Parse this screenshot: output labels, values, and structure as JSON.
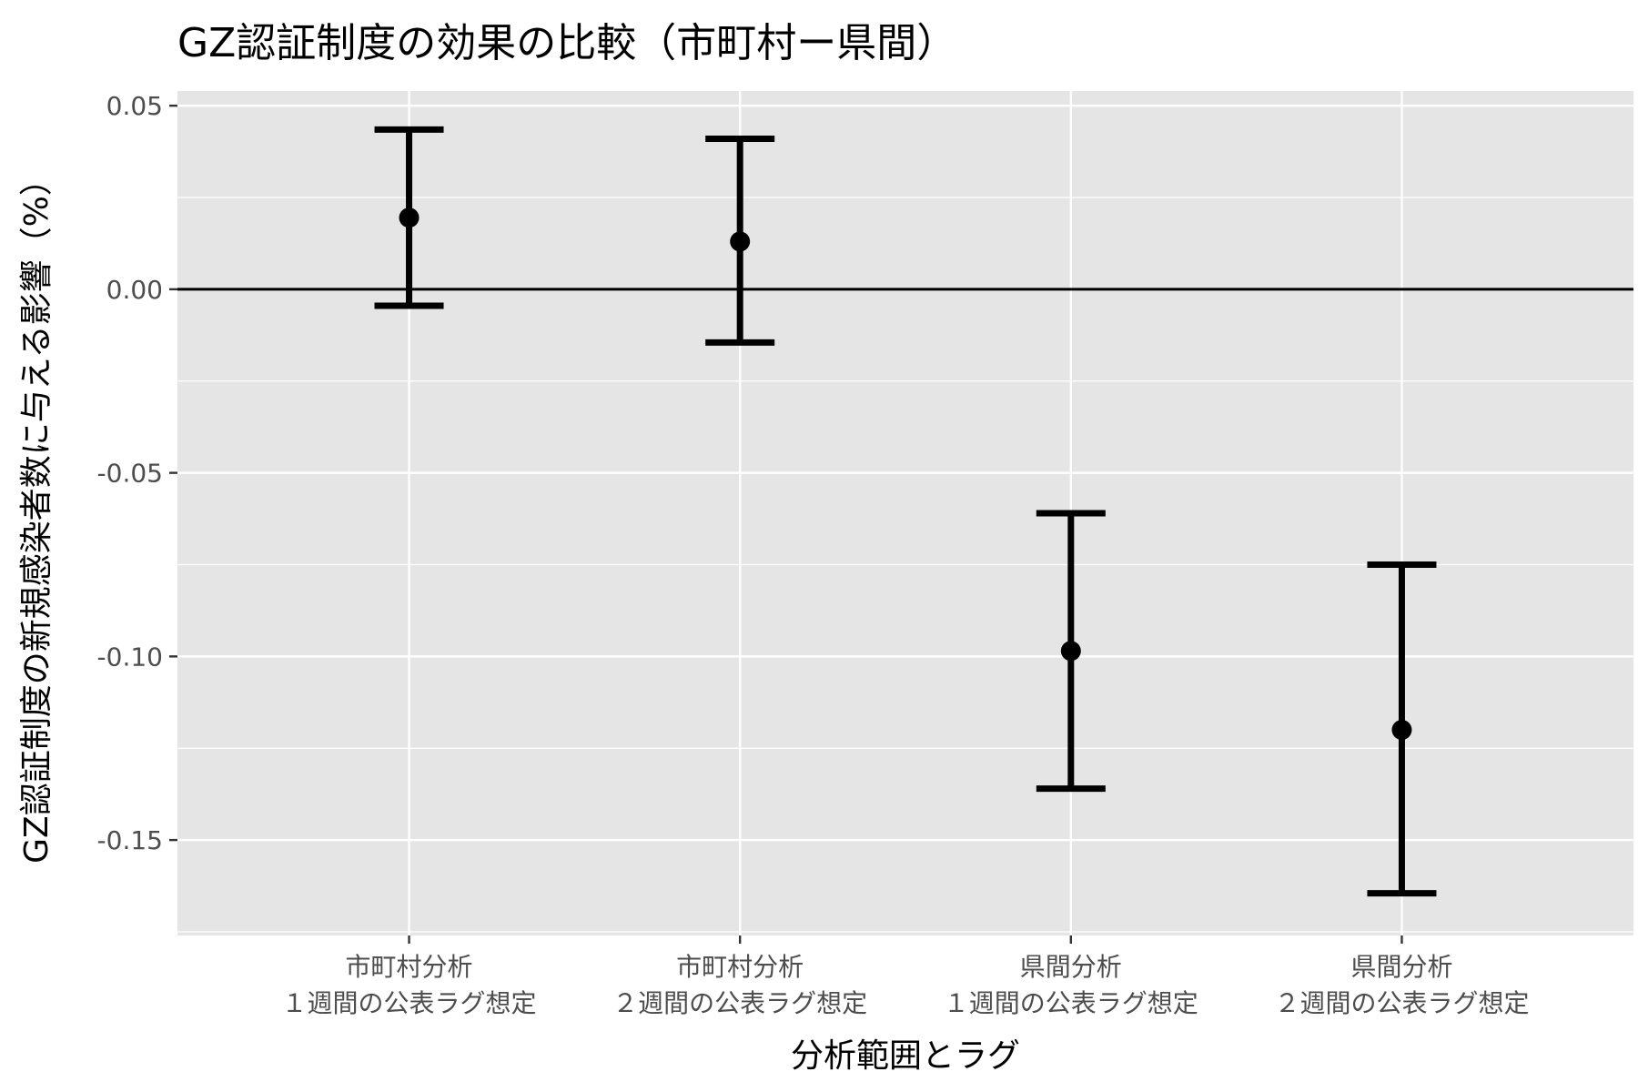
{
  "chart_data": {
    "type": "errorbar",
    "title": "GZ認証制度の効果の比較（市町村ー県間）",
    "xlabel": "分析範囲とラグ",
    "ylabel": "GZ認証制度の新規感染者数に与える影響（%）",
    "ylim": [
      -0.176,
      0.054
    ],
    "y_ticks": [
      0.05,
      0.0,
      -0.05,
      -0.1,
      -0.15
    ],
    "y_tick_labels": [
      "0.05",
      "0.00",
      "-0.05",
      "-0.10",
      "-0.15"
    ],
    "reference_line": 0.0,
    "grid": true,
    "categories": [
      {
        "line1": "市町村分析",
        "line2": "１週間の公表ラグ想定"
      },
      {
        "line1": "市町村分析",
        "line2": "２週間の公表ラグ想定"
      },
      {
        "line1": "県間分析",
        "line2": "１週間の公表ラグ想定"
      },
      {
        "line1": "県間分析",
        "line2": "２週間の公表ラグ想定"
      }
    ],
    "points": [
      {
        "estimate": 0.0195,
        "lower": -0.0045,
        "upper": 0.0435
      },
      {
        "estimate": 0.013,
        "lower": -0.0145,
        "upper": 0.041
      },
      {
        "estimate": -0.0985,
        "lower": -0.136,
        "upper": -0.061
      },
      {
        "estimate": -0.12,
        "lower": -0.1645,
        "upper": -0.075
      }
    ],
    "colors": {
      "panel_background": "#e5e5e5",
      "grid_line": "#ffffff",
      "mark": "#000000",
      "tick_text": "#4d4d4d"
    }
  }
}
